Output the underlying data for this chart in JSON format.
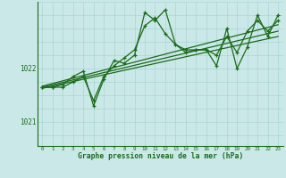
{
  "bg_color": "#cbe8e8",
  "grid_color": "#aad4d4",
  "line_color": "#1a6b1a",
  "xlabel": "Graphe pression niveau de la mer (hPa)",
  "ylabel_ticks": [
    1021,
    1022
  ],
  "xlim": [
    -0.5,
    23.5
  ],
  "ylim": [
    1020.55,
    1023.25
  ],
  "xticks": [
    0,
    1,
    2,
    3,
    4,
    5,
    6,
    7,
    8,
    9,
    10,
    11,
    12,
    13,
    14,
    15,
    16,
    17,
    18,
    19,
    20,
    21,
    22,
    23
  ],
  "hgrid_y": [
    1020.75,
    1021.0,
    1021.25,
    1021.5,
    1021.75,
    1022.0,
    1022.25,
    1022.5,
    1022.75,
    1023.0,
    1023.25
  ],
  "series1_x": [
    0,
    1,
    2,
    3,
    4,
    5,
    6,
    7,
    8,
    9,
    10,
    11,
    12,
    13,
    14,
    15,
    16,
    17,
    18,
    19,
    20,
    21,
    22,
    23
  ],
  "series1_y": [
    1021.65,
    1021.65,
    1021.65,
    1021.75,
    1021.85,
    1021.4,
    1021.85,
    1022.05,
    1022.2,
    1022.35,
    1022.8,
    1022.95,
    1022.65,
    1022.45,
    1022.35,
    1022.35,
    1022.35,
    1022.25,
    1022.6,
    1022.3,
    1022.7,
    1022.9,
    1022.7,
    1022.9
  ],
  "series2_x": [
    0,
    1,
    2,
    3,
    4,
    5,
    6,
    7,
    8,
    9,
    10,
    11,
    12,
    13,
    14,
    15,
    16,
    17,
    18,
    19,
    20,
    21,
    22,
    23
  ],
  "series2_y": [
    1021.65,
    1021.65,
    1021.7,
    1021.85,
    1021.95,
    1021.3,
    1021.8,
    1022.15,
    1022.1,
    1022.25,
    1023.05,
    1022.9,
    1023.1,
    1022.45,
    1022.3,
    1022.35,
    1022.35,
    1022.05,
    1022.75,
    1022.0,
    1022.4,
    1023.0,
    1022.6,
    1023.0
  ],
  "trend1_x": [
    0,
    23
  ],
  "trend1_y": [
    1021.65,
    1022.7
  ],
  "trend2_x": [
    0,
    23
  ],
  "trend2_y": [
    1021.67,
    1022.82
  ],
  "trend3_x": [
    0,
    23
  ],
  "trend3_y": [
    1021.63,
    1022.6
  ]
}
